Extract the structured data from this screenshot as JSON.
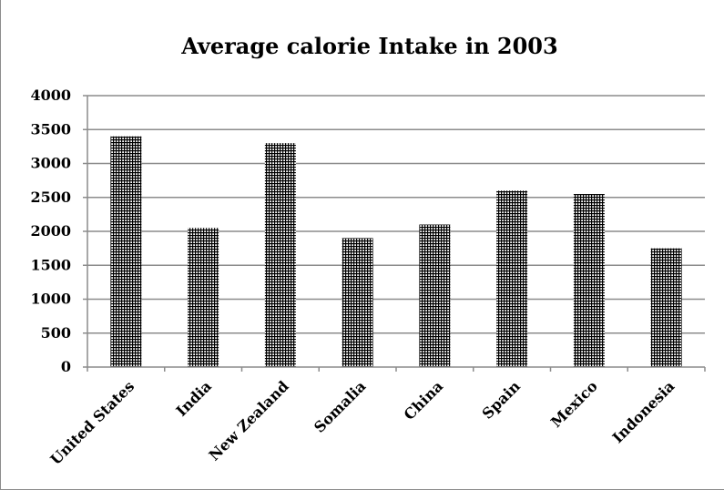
{
  "chart_data": {
    "type": "bar",
    "title": "Average calorie Intake in 2003",
    "xlabel": "",
    "ylabel": "",
    "categories": [
      "United States",
      "India",
      "New Zealand",
      "Somalia",
      "China",
      "Spain",
      "Mexico",
      "Indonesia"
    ],
    "values": [
      3400,
      2050,
      3300,
      1900,
      2100,
      2600,
      2550,
      1750
    ],
    "ylim": [
      0,
      4000
    ],
    "yticks": [
      0,
      500,
      1000,
      1500,
      2000,
      2500,
      3000,
      3500,
      4000
    ],
    "grid": true,
    "legend": "none",
    "bar_pattern": "grid-hatch",
    "colors": {
      "bar": "#000000",
      "gridline": "#8c8c8c",
      "axis": "#8c8c8c"
    }
  }
}
